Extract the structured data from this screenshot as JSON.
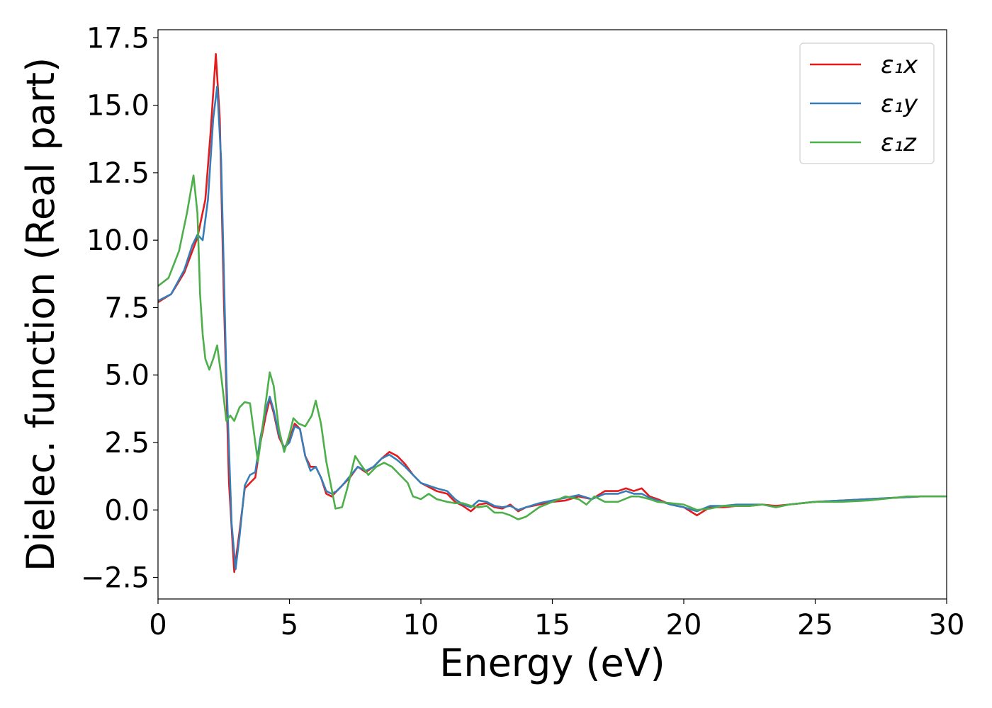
{
  "chart_data": {
    "type": "line",
    "xlabel": "Energy (eV)",
    "ylabel": "Dielec. function (Real part)",
    "xlim": [
      0,
      30
    ],
    "ylim": [
      -3.3,
      17.8
    ],
    "xticks": [
      0,
      5,
      10,
      15,
      20,
      25,
      30
    ],
    "xtick_labels": [
      "0",
      "5",
      "10",
      "15",
      "20",
      "25",
      "30"
    ],
    "yticks": [
      -2.5,
      0.0,
      2.5,
      5.0,
      7.5,
      10.0,
      12.5,
      15.0,
      17.5
    ],
    "ytick_labels": [
      "−2.5",
      "0.0",
      "2.5",
      "5.0",
      "7.5",
      "10.0",
      "12.5",
      "15.0",
      "17.5"
    ],
    "grid": false,
    "legend_position": "top-right",
    "series": [
      {
        "name": "ε₁x",
        "color": "#e41a1c",
        "points": [
          [
            0,
            7.7
          ],
          [
            0.5,
            8.0
          ],
          [
            1.0,
            8.8
          ],
          [
            1.5,
            10.1
          ],
          [
            1.8,
            11.5
          ],
          [
            2.0,
            14.0
          ],
          [
            2.2,
            16.9
          ],
          [
            2.35,
            14.5
          ],
          [
            2.5,
            8.0
          ],
          [
            2.7,
            1.0
          ],
          [
            2.9,
            -2.3
          ],
          [
            3.1,
            -0.8
          ],
          [
            3.3,
            0.8
          ],
          [
            3.5,
            1.0
          ],
          [
            3.7,
            1.2
          ],
          [
            3.9,
            2.5
          ],
          [
            4.1,
            3.5
          ],
          [
            4.25,
            4.1
          ],
          [
            4.4,
            3.6
          ],
          [
            4.6,
            2.7
          ],
          [
            4.8,
            2.3
          ],
          [
            5.0,
            2.6
          ],
          [
            5.2,
            3.2
          ],
          [
            5.4,
            3.0
          ],
          [
            5.6,
            2.0
          ],
          [
            5.8,
            1.6
          ],
          [
            6.0,
            1.6
          ],
          [
            6.2,
            1.2
          ],
          [
            6.4,
            0.6
          ],
          [
            6.6,
            0.5
          ],
          [
            6.8,
            0.7
          ],
          [
            7.0,
            0.9
          ],
          [
            7.3,
            1.2
          ],
          [
            7.6,
            1.6
          ],
          [
            7.9,
            1.4
          ],
          [
            8.2,
            1.6
          ],
          [
            8.5,
            1.9
          ],
          [
            8.8,
            2.15
          ],
          [
            9.1,
            2.0
          ],
          [
            9.4,
            1.7
          ],
          [
            9.7,
            1.3
          ],
          [
            10.0,
            1.0
          ],
          [
            10.3,
            0.85
          ],
          [
            10.6,
            0.7
          ],
          [
            11.0,
            0.6
          ],
          [
            11.3,
            0.3
          ],
          [
            11.6,
            0.15
          ],
          [
            11.9,
            -0.05
          ],
          [
            12.2,
            0.2
          ],
          [
            12.5,
            0.25
          ],
          [
            12.8,
            0.1
          ],
          [
            13.1,
            0.05
          ],
          [
            13.4,
            0.2
          ],
          [
            13.7,
            -0.05
          ],
          [
            14.0,
            0.1
          ],
          [
            14.5,
            0.2
          ],
          [
            15.0,
            0.3
          ],
          [
            15.5,
            0.35
          ],
          [
            16.0,
            0.5
          ],
          [
            16.5,
            0.4
          ],
          [
            17.0,
            0.7
          ],
          [
            17.5,
            0.7
          ],
          [
            17.8,
            0.8
          ],
          [
            18.1,
            0.7
          ],
          [
            18.4,
            0.8
          ],
          [
            18.7,
            0.5
          ],
          [
            19.0,
            0.4
          ],
          [
            19.5,
            0.2
          ],
          [
            20.0,
            0.1
          ],
          [
            20.5,
            -0.2
          ],
          [
            21.0,
            0.1
          ],
          [
            21.5,
            0.1
          ],
          [
            22.0,
            0.15
          ],
          [
            22.5,
            0.15
          ],
          [
            23.0,
            0.2
          ],
          [
            23.5,
            0.15
          ],
          [
            24.0,
            0.2
          ],
          [
            25.0,
            0.3
          ],
          [
            26.0,
            0.35
          ],
          [
            27.0,
            0.4
          ],
          [
            28.0,
            0.45
          ],
          [
            29.0,
            0.5
          ],
          [
            30.0,
            0.5
          ]
        ]
      },
      {
        "name": "ε₁y",
        "color": "#377eb8",
        "points": [
          [
            0,
            7.75
          ],
          [
            0.5,
            8.0
          ],
          [
            1.0,
            8.9
          ],
          [
            1.3,
            9.8
          ],
          [
            1.5,
            10.2
          ],
          [
            1.7,
            10.0
          ],
          [
            1.9,
            11.5
          ],
          [
            2.1,
            14.5
          ],
          [
            2.25,
            15.7
          ],
          [
            2.4,
            13.0
          ],
          [
            2.6,
            5.0
          ],
          [
            2.8,
            -0.5
          ],
          [
            2.95,
            -2.2
          ],
          [
            3.1,
            -1.0
          ],
          [
            3.3,
            0.9
          ],
          [
            3.5,
            1.3
          ],
          [
            3.7,
            1.4
          ],
          [
            3.9,
            2.7
          ],
          [
            4.1,
            3.7
          ],
          [
            4.25,
            4.2
          ],
          [
            4.4,
            3.7
          ],
          [
            4.6,
            2.8
          ],
          [
            4.8,
            2.3
          ],
          [
            5.0,
            2.5
          ],
          [
            5.2,
            3.1
          ],
          [
            5.4,
            3.0
          ],
          [
            5.6,
            2.0
          ],
          [
            5.8,
            1.45
          ],
          [
            6.0,
            1.6
          ],
          [
            6.2,
            1.2
          ],
          [
            6.4,
            0.7
          ],
          [
            6.6,
            0.6
          ],
          [
            6.8,
            0.7
          ],
          [
            7.0,
            0.9
          ],
          [
            7.3,
            1.25
          ],
          [
            7.6,
            1.6
          ],
          [
            7.9,
            1.45
          ],
          [
            8.2,
            1.6
          ],
          [
            8.5,
            1.9
          ],
          [
            8.8,
            2.05
          ],
          [
            9.1,
            1.85
          ],
          [
            9.4,
            1.6
          ],
          [
            9.7,
            1.3
          ],
          [
            10.0,
            1.0
          ],
          [
            10.3,
            0.9
          ],
          [
            10.6,
            0.8
          ],
          [
            11.0,
            0.7
          ],
          [
            11.3,
            0.4
          ],
          [
            11.6,
            0.2
          ],
          [
            11.9,
            0.1
          ],
          [
            12.2,
            0.35
          ],
          [
            12.5,
            0.3
          ],
          [
            12.8,
            0.15
          ],
          [
            13.1,
            0.1
          ],
          [
            13.4,
            0.15
          ],
          [
            13.7,
            0.0
          ],
          [
            14.0,
            0.1
          ],
          [
            14.5,
            0.25
          ],
          [
            15.0,
            0.35
          ],
          [
            15.5,
            0.45
          ],
          [
            16.0,
            0.55
          ],
          [
            16.5,
            0.4
          ],
          [
            17.0,
            0.6
          ],
          [
            17.5,
            0.6
          ],
          [
            17.8,
            0.7
          ],
          [
            18.1,
            0.6
          ],
          [
            18.4,
            0.6
          ],
          [
            18.7,
            0.45
          ],
          [
            19.0,
            0.35
          ],
          [
            19.5,
            0.2
          ],
          [
            20.0,
            0.1
          ],
          [
            20.5,
            -0.05
          ],
          [
            21.0,
            0.15
          ],
          [
            21.5,
            0.15
          ],
          [
            22.0,
            0.2
          ],
          [
            22.5,
            0.2
          ],
          [
            23.0,
            0.2
          ],
          [
            23.5,
            0.1
          ],
          [
            24.0,
            0.2
          ],
          [
            25.0,
            0.3
          ],
          [
            26.0,
            0.35
          ],
          [
            27.0,
            0.4
          ],
          [
            28.0,
            0.45
          ],
          [
            29.0,
            0.5
          ],
          [
            30.0,
            0.5
          ]
        ]
      },
      {
        "name": "ε₁z",
        "color": "#4daf4a",
        "points": [
          [
            0,
            8.3
          ],
          [
            0.4,
            8.6
          ],
          [
            0.8,
            9.6
          ],
          [
            1.1,
            11.0
          ],
          [
            1.35,
            12.4
          ],
          [
            1.5,
            11.0
          ],
          [
            1.6,
            8.0
          ],
          [
            1.7,
            6.5
          ],
          [
            1.8,
            5.6
          ],
          [
            1.95,
            5.2
          ],
          [
            2.1,
            5.6
          ],
          [
            2.25,
            6.1
          ],
          [
            2.4,
            5.0
          ],
          [
            2.6,
            3.3
          ],
          [
            2.75,
            3.5
          ],
          [
            2.9,
            3.3
          ],
          [
            3.1,
            3.8
          ],
          [
            3.3,
            4.0
          ],
          [
            3.5,
            3.95
          ],
          [
            3.7,
            2.5
          ],
          [
            3.8,
            1.8
          ],
          [
            3.9,
            2.5
          ],
          [
            4.1,
            4.0
          ],
          [
            4.25,
            5.1
          ],
          [
            4.4,
            4.6
          ],
          [
            4.6,
            3.0
          ],
          [
            4.8,
            2.15
          ],
          [
            5.0,
            2.8
          ],
          [
            5.15,
            3.4
          ],
          [
            5.35,
            3.2
          ],
          [
            5.6,
            3.1
          ],
          [
            5.85,
            3.5
          ],
          [
            6.0,
            4.05
          ],
          [
            6.2,
            3.2
          ],
          [
            6.4,
            1.8
          ],
          [
            6.6,
            0.8
          ],
          [
            6.75,
            0.05
          ],
          [
            7.0,
            0.1
          ],
          [
            7.2,
            0.8
          ],
          [
            7.5,
            2.0
          ],
          [
            7.7,
            1.7
          ],
          [
            8.0,
            1.3
          ],
          [
            8.3,
            1.6
          ],
          [
            8.6,
            1.75
          ],
          [
            8.9,
            1.6
          ],
          [
            9.2,
            1.3
          ],
          [
            9.5,
            1.0
          ],
          [
            9.7,
            0.5
          ],
          [
            10.0,
            0.4
          ],
          [
            10.3,
            0.6
          ],
          [
            10.6,
            0.4
          ],
          [
            11.0,
            0.3
          ],
          [
            11.3,
            0.25
          ],
          [
            11.6,
            0.25
          ],
          [
            11.9,
            0.15
          ],
          [
            12.2,
            0.1
          ],
          [
            12.5,
            0.15
          ],
          [
            12.8,
            -0.1
          ],
          [
            13.1,
            -0.1
          ],
          [
            13.4,
            -0.2
          ],
          [
            13.7,
            -0.35
          ],
          [
            14.0,
            -0.25
          ],
          [
            14.5,
            0.1
          ],
          [
            15.0,
            0.3
          ],
          [
            15.5,
            0.5
          ],
          [
            16.0,
            0.4
          ],
          [
            16.3,
            0.2
          ],
          [
            16.6,
            0.5
          ],
          [
            17.0,
            0.3
          ],
          [
            17.5,
            0.3
          ],
          [
            18.0,
            0.5
          ],
          [
            18.3,
            0.5
          ],
          [
            18.7,
            0.4
          ],
          [
            19.0,
            0.3
          ],
          [
            19.5,
            0.25
          ],
          [
            20.0,
            0.2
          ],
          [
            20.5,
            0.0
          ],
          [
            21.0,
            0.05
          ],
          [
            21.5,
            0.15
          ],
          [
            22.0,
            0.15
          ],
          [
            22.5,
            0.15
          ],
          [
            23.0,
            0.2
          ],
          [
            23.5,
            0.1
          ],
          [
            24.0,
            0.2
          ],
          [
            25.0,
            0.3
          ],
          [
            26.0,
            0.3
          ],
          [
            27.0,
            0.35
          ],
          [
            28.0,
            0.45
          ],
          [
            28.5,
            0.5
          ],
          [
            29.0,
            0.5
          ],
          [
            30.0,
            0.5
          ]
        ]
      }
    ]
  }
}
